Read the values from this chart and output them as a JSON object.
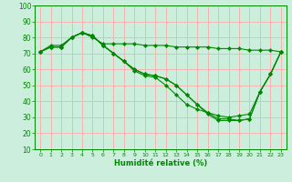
{
  "xlabel": "Humidité relative (%)",
  "bg_color": "#cceedd",
  "grid_color": "#ffaaaa",
  "line_color": "#008800",
  "xlim": [
    -0.5,
    23.5
  ],
  "ylim": [
    10,
    100
  ],
  "yticks": [
    10,
    20,
    30,
    40,
    50,
    60,
    70,
    80,
    90,
    100
  ],
  "xticks": [
    0,
    1,
    2,
    3,
    4,
    5,
    6,
    7,
    8,
    9,
    10,
    11,
    12,
    13,
    14,
    15,
    16,
    17,
    18,
    19,
    20,
    21,
    22,
    23
  ],
  "series": [
    [
      71,
      74,
      74,
      80,
      83,
      81,
      75,
      70,
      65,
      59,
      56,
      55,
      50,
      44,
      38,
      35,
      33,
      31,
      30,
      31,
      32,
      46,
      57,
      71
    ],
    [
      71,
      74,
      74,
      80,
      83,
      81,
      75,
      70,
      65,
      60,
      57,
      56,
      54,
      50,
      44,
      38,
      33,
      29,
      29,
      28,
      29,
      46,
      57,
      71
    ],
    [
      71,
      74,
      74,
      80,
      83,
      81,
      75,
      70,
      65,
      60,
      57,
      56,
      54,
      50,
      44,
      38,
      32,
      28,
      28,
      28,
      29,
      46,
      57,
      71
    ],
    [
      71,
      75,
      75,
      80,
      83,
      80,
      76,
      76,
      76,
      76,
      75,
      75,
      75,
      74,
      74,
      74,
      74,
      73,
      73,
      73,
      72,
      72,
      72,
      71
    ]
  ]
}
